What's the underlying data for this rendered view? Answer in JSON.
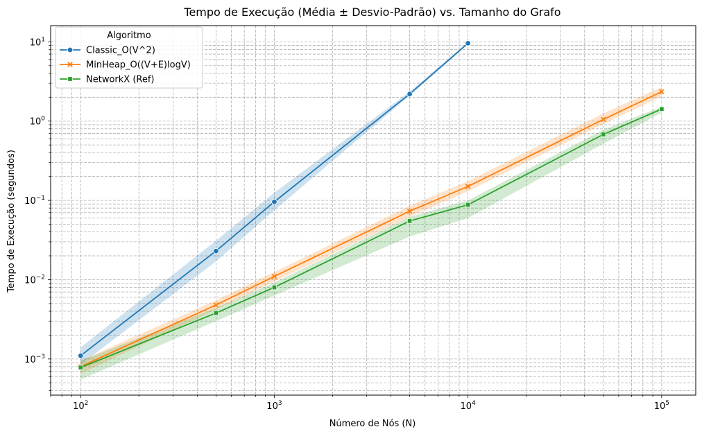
{
  "chart_data": {
    "type": "line",
    "title": "Tempo de Execução (Média ± Desvio-Padrão) vs. Tamanho do Grafo",
    "xlabel": "Número de Nós (N)",
    "ylabel": "Tempo de Execução (segundos)",
    "xscale": "log",
    "yscale": "log",
    "xlim": [
      70,
      150000
    ],
    "ylim": [
      0.00035,
      16
    ],
    "xticks": [
      100,
      1000,
      10000,
      100000
    ],
    "xtick_labels": [
      {
        "base": "10",
        "exp": "2"
      },
      {
        "base": "10",
        "exp": "3"
      },
      {
        "base": "10",
        "exp": "4"
      },
      {
        "base": "10",
        "exp": "5"
      }
    ],
    "yticks": [
      0.001,
      0.01,
      0.1,
      1,
      10
    ],
    "ytick_labels": [
      {
        "base": "10",
        "exp": "−3"
      },
      {
        "base": "10",
        "exp": "−2"
      },
      {
        "base": "10",
        "exp": "−1"
      },
      {
        "base": "10",
        "exp": "0"
      },
      {
        "base": "10",
        "exp": "1"
      }
    ],
    "grid": true,
    "legend": {
      "title": "Algoritmo",
      "location": "upper-left"
    },
    "series": [
      {
        "name": "Classic_O(V^2)",
        "color": "#1f77b4",
        "marker": "circle",
        "x": [
          100,
          500,
          1000,
          5000,
          10000
        ],
        "y": [
          0.0011,
          0.023,
          0.096,
          2.2,
          9.6
        ],
        "y_low": [
          0.00085,
          0.017,
          0.075,
          2.1,
          9.3
        ],
        "y_high": [
          0.0014,
          0.031,
          0.125,
          2.35,
          10.0
        ]
      },
      {
        "name": "MinHeap_O((V+E)logV)",
        "color": "#ff7f0e",
        "marker": "x",
        "x": [
          100,
          500,
          1000,
          5000,
          10000,
          50000,
          100000
        ],
        "y": [
          0.0008,
          0.0048,
          0.011,
          0.073,
          0.15,
          1.05,
          2.35
        ],
        "y_low": [
          0.00065,
          0.0042,
          0.0095,
          0.062,
          0.13,
          0.92,
          2.05
        ],
        "y_high": [
          0.00095,
          0.0055,
          0.0125,
          0.085,
          0.175,
          1.25,
          2.7
        ]
      },
      {
        "name": "NetworkX (Ref)",
        "color": "#2ca02c",
        "marker": "square",
        "x": [
          100,
          500,
          1000,
          5000,
          10000,
          50000,
          100000
        ],
        "y": [
          0.00078,
          0.0038,
          0.008,
          0.055,
          0.088,
          0.68,
          1.42
        ],
        "y_low": [
          0.00055,
          0.003,
          0.0063,
          0.035,
          0.06,
          0.52,
          1.28
        ],
        "y_high": [
          0.00095,
          0.0044,
          0.0092,
          0.062,
          0.1,
          0.78,
          1.52
        ]
      }
    ]
  }
}
